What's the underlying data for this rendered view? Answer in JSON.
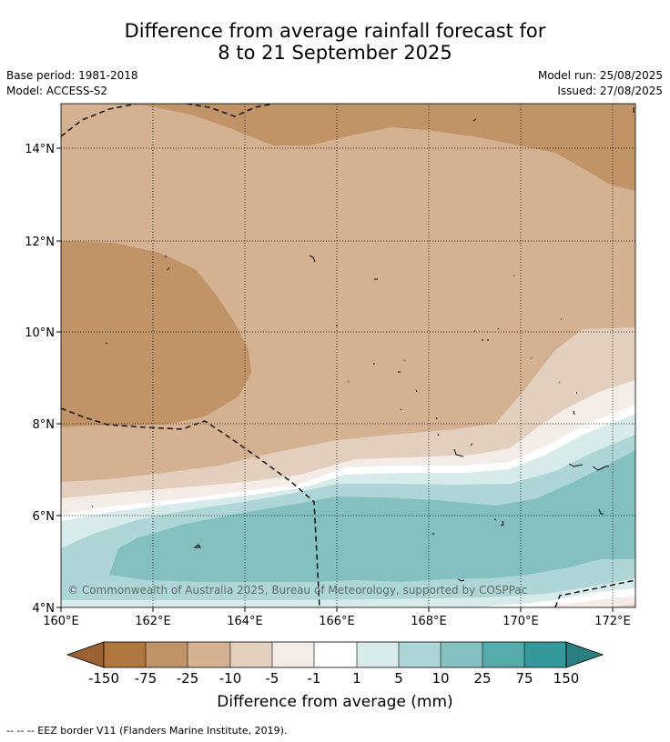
{
  "title": {
    "line1": "Difference from average rainfall forecast for",
    "line2": "8 to 21 September 2025"
  },
  "meta": {
    "base_period": "Base period: 1981-2018",
    "model": "Model: ACCESS-S2",
    "model_run": "Model run: 25/08/2025",
    "issued": "Issued: 27/08/2025"
  },
  "map": {
    "lon_range": [
      160,
      172.5
    ],
    "lat_range": [
      4,
      15
    ],
    "x_ticks": [
      "160°E",
      "162°E",
      "164°E",
      "166°E",
      "168°E",
      "170°E",
      "172°E"
    ],
    "y_ticks": [
      "4°N",
      "6°N",
      "8°N",
      "10°N",
      "12°N",
      "14°N"
    ],
    "copyright": "© Commonwealth of Australia 2025, Bureau of Meteorology, supported by COSPPac"
  },
  "colorbar": {
    "labels": [
      "-150",
      "-75",
      "-25",
      "-10",
      "-5",
      "-1",
      "1",
      "5",
      "10",
      "25",
      "75",
      "150"
    ],
    "colors": [
      "#9c6232",
      "#b0763f",
      "#c19468",
      "#d3b191",
      "#e3cfbd",
      "#f4ece6",
      "#ffffff",
      "#d7ebea",
      "#afd6d6",
      "#84c0c0",
      "#56acab",
      "#34999a",
      "#2a7f80"
    ],
    "title": "Difference from average (mm)"
  },
  "footnote": "--  --  -- EEZ border V11 (Flanders Marine Institute, 2019)."
}
